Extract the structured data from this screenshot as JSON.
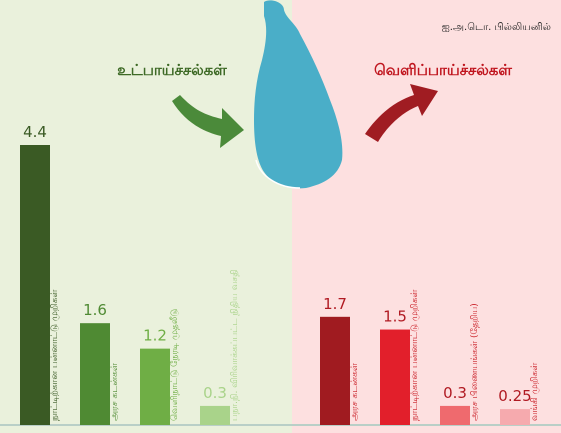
{
  "source_note": "ஐ.அ.டொ. பில்லியனில்",
  "colors": {
    "left_panel_bg": "#eaf1dc",
    "right_panel_bg": "#fde0e0",
    "sri_lanka_map": "#4aaec8",
    "inflow_title": "#3e6a26",
    "outflow_title": "#c0161f",
    "inflow_arrow": "#4b8a3a",
    "outflow_arrow": "#a01c22",
    "axis_line": "#b9cfc7",
    "outflow_label_text": "#c91c24"
  },
  "chart_data": [
    {
      "type": "bar",
      "title": "உட்பாய்ச்சல்கள்",
      "categories": [
        "நாட்டிற்கான பன்னாட்டு முறிகள்",
        "அரச கடன்கள்",
        "வெளிநாட்டு நேரடி முதலீடு",
        "பநா.நி. விரிவாக்கப்பட்ட நிதிய வசதி"
      ],
      "values": [
        4.4,
        1.6,
        1.2,
        0.3
      ],
      "value_labels": [
        "4.4",
        "1.6",
        "1.2",
        "0.3"
      ],
      "colors": [
        "#3a5a24",
        "#4f8a33",
        "#6fae45",
        "#a9d38a"
      ],
      "ylim": [
        0,
        4.4
      ],
      "legend": "none",
      "grid": false
    },
    {
      "type": "bar",
      "title": "வெளிப்பாய்ச்சல்கள்",
      "categories": [
        "அரச கடன்கள்",
        "நாட்டிற்கான பன்னாட்டு முறிகள்",
        "அரச பிணையங்கள் (தேறிய)",
        "வங்கி முறிகள்"
      ],
      "values": [
        1.7,
        1.5,
        0.3,
        0.25
      ],
      "value_labels": [
        "1.7",
        "1.5",
        "0.3",
        "0.25"
      ],
      "colors": [
        "#a01b20",
        "#e21f2b",
        "#ef6a6e",
        "#f6aaae"
      ],
      "ylim": [
        0,
        4.4
      ],
      "legend": "none",
      "grid": false
    }
  ]
}
